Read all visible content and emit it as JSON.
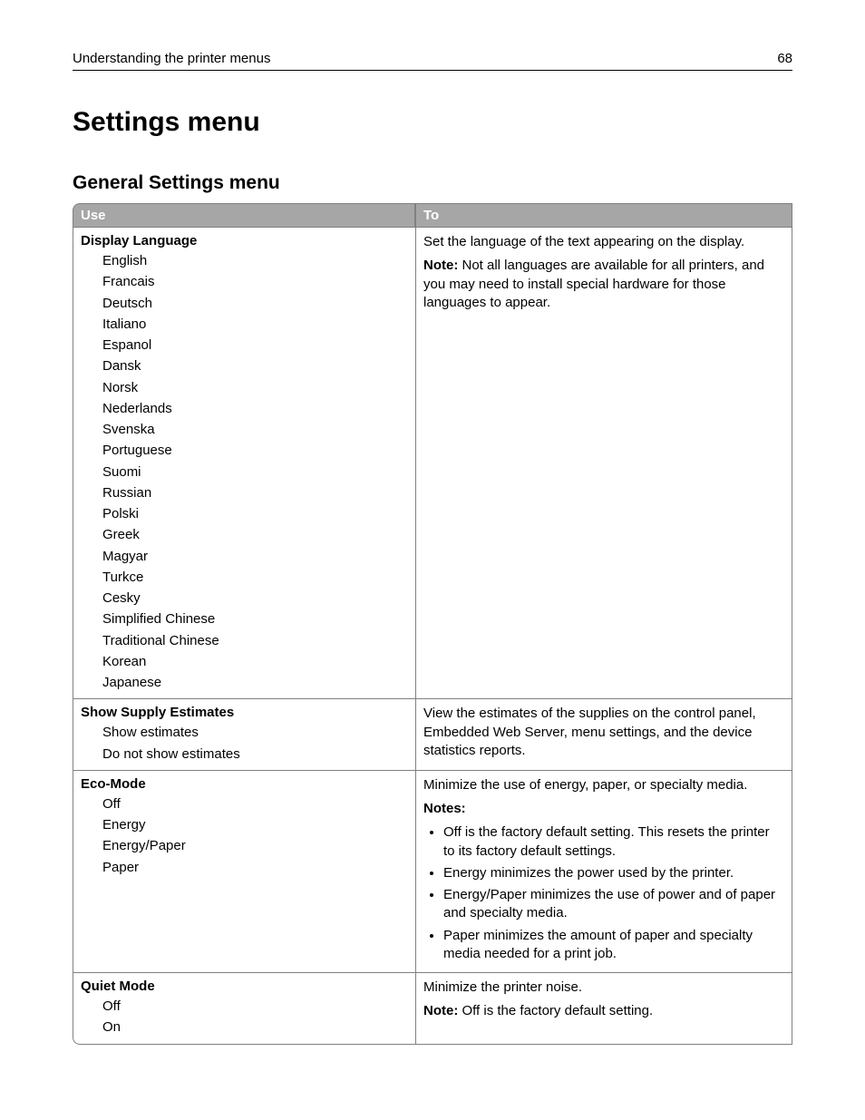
{
  "header": {
    "section": "Understanding the printer menus",
    "page": "68"
  },
  "title": "Settings menu",
  "subtitle": "General Settings menu",
  "table": {
    "columns": {
      "use": "Use",
      "to": "To"
    },
    "rows": [
      {
        "name": "Display Language",
        "options": [
          "English",
          "Francais",
          "Deutsch",
          "Italiano",
          "Espanol",
          "Dansk",
          "Norsk",
          "Nederlands",
          "Svenska",
          "Portuguese",
          "Suomi",
          "Russian",
          "Polski",
          "Greek",
          "Magyar",
          "Turkce",
          "Cesky",
          "Simplified Chinese",
          "Traditional Chinese",
          "Korean",
          "Japanese"
        ],
        "desc_intro": "Set the language of the text appearing on the display.",
        "note_label": "Note:",
        "note_text": " Not all languages are available for all printers, and you may need to install special hardware for those languages to appear."
      },
      {
        "name": "Show Supply Estimates",
        "options": [
          "Show estimates",
          "Do not show estimates"
        ],
        "desc_intro": "View the estimates of the supplies on the control panel, Embedded Web Server, menu settings, and the device statistics reports."
      },
      {
        "name": "Eco-Mode",
        "options": [
          "Off",
          "Energy",
          "Energy/Paper",
          "Paper"
        ],
        "desc_intro": "Minimize the use of energy, paper, or specialty media.",
        "notes_label": "Notes:",
        "bullets": [
          "Off is the factory default setting. This resets the printer to its factory default settings.",
          "Energy minimizes the power used by the printer.",
          "Energy/Paper minimizes the use of power and of paper and specialty media.",
          "Paper minimizes the amount of paper and specialty media needed for a print job."
        ]
      },
      {
        "name": "Quiet Mode",
        "options": [
          "Off",
          "On"
        ],
        "desc_intro": "Minimize the printer noise.",
        "note_label": "Note:",
        "note_text": " Off is the factory default setting."
      }
    ]
  }
}
